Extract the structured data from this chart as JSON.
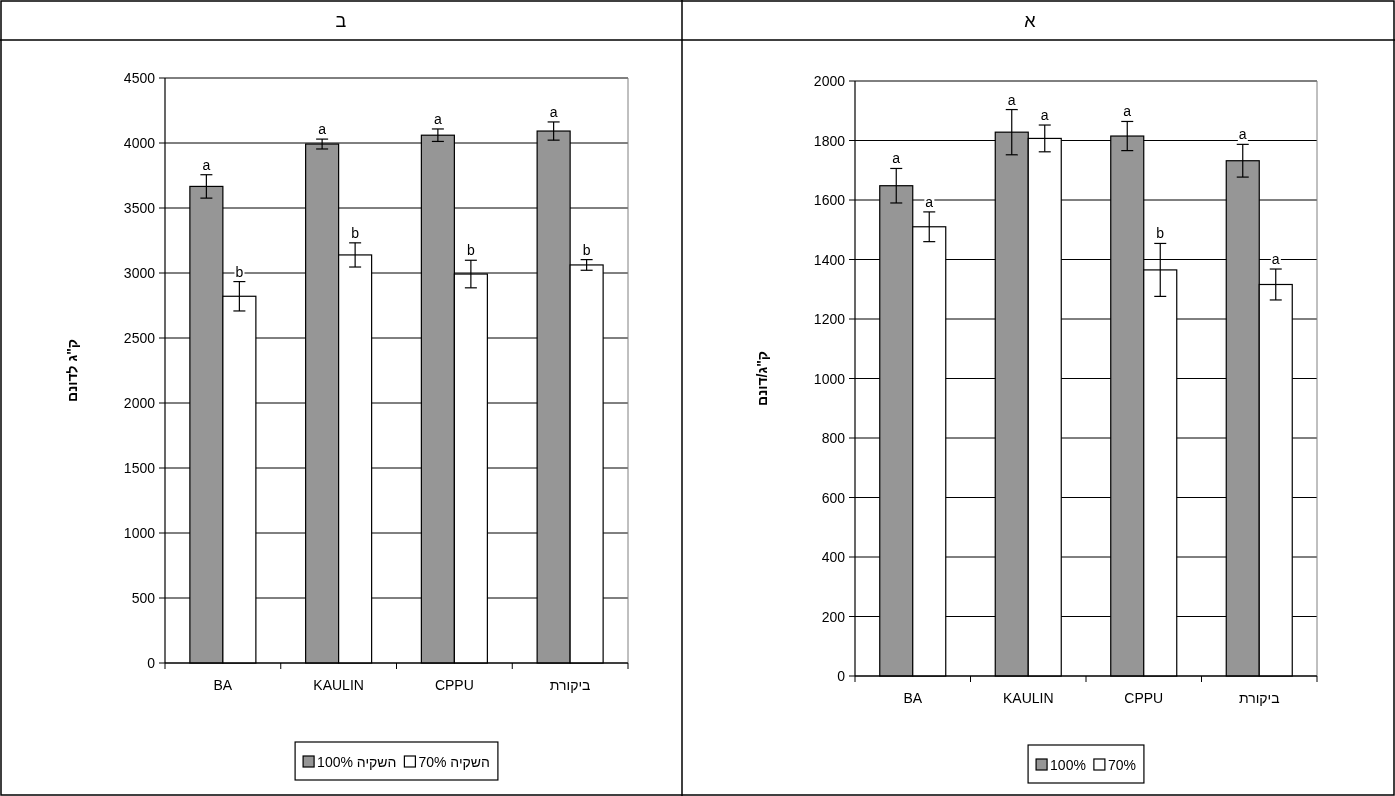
{
  "chart_data": [
    {
      "type": "bar",
      "title": "א",
      "ylabel": "ק\"ג/דונם",
      "categories": [
        "BA",
        "KAULIN",
        "CPPU",
        "ביקורת"
      ],
      "series": [
        {
          "name": "100%",
          "color": "#969696",
          "values": [
            1648,
            1828,
            1815,
            1732
          ],
          "errors": [
            58,
            76,
            49,
            55
          ],
          "value_labels": [
            "a",
            "a",
            "a",
            "a"
          ]
        },
        {
          "name": "70%",
          "color": "#ffffff",
          "values": [
            1510,
            1807,
            1365,
            1316
          ],
          "errors": [
            50,
            45,
            89,
            52
          ],
          "value_labels": [
            "a",
            "a",
            "b",
            "a"
          ]
        }
      ],
      "ylim": [
        0,
        2000
      ],
      "yticks": [
        0,
        200,
        400,
        600,
        800,
        1000,
        1200,
        1400,
        1600,
        1800,
        2000
      ],
      "grid": "y",
      "legend": "bottom"
    },
    {
      "type": "bar",
      "title": "ב",
      "ylabel": "ק\"ג לדונם",
      "categories": [
        "BA",
        "KAULIN",
        "CPPU",
        "ביקורת"
      ],
      "series": [
        {
          "name": "השקיה 100%",
          "color": "#969696",
          "values": [
            3666,
            3992,
            4060,
            4092
          ],
          "errors": [
            90,
            38,
            48,
            70
          ],
          "value_labels": [
            "a",
            "a",
            "a",
            "a"
          ]
        },
        {
          "name": "השקיה 70%",
          "color": "#ffffff",
          "values": [
            2821,
            3139,
            2992,
            3062
          ],
          "errors": [
            113,
            93,
            106,
            41
          ],
          "value_labels": [
            "b",
            "b",
            "b",
            "b"
          ]
        }
      ],
      "ylim": [
        0,
        4500
      ],
      "yticks": [
        0,
        500,
        1000,
        1500,
        2000,
        2500,
        3000,
        3500,
        4000,
        4500
      ],
      "grid": "y",
      "legend": "bottom"
    }
  ]
}
